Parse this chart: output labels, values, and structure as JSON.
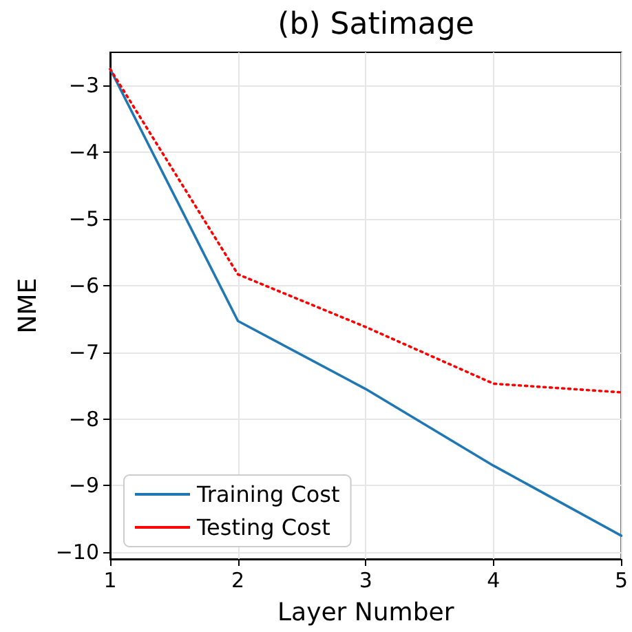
{
  "chart_data": {
    "type": "line",
    "title": "(b) Satimage",
    "xlabel": "Layer Number",
    "ylabel": "NME",
    "x": [
      1,
      2,
      3,
      4,
      5
    ],
    "series": [
      {
        "name": "Training Cost",
        "color": "#1f77b4",
        "line_style": "solid",
        "values": [
          -2.75,
          -6.53,
          -7.55,
          -8.7,
          -9.75
        ]
      },
      {
        "name": "Testing Cost",
        "color": "#ff0000",
        "line_style": "dotted",
        "values": [
          -2.75,
          -5.83,
          -6.62,
          -7.47,
          -7.6
        ]
      }
    ],
    "xlim": [
      1,
      5
    ],
    "xticks": [
      1,
      2,
      3,
      4,
      5
    ],
    "ylim": [
      -10.1,
      -2.5
    ],
    "yticks": [
      -10,
      -9,
      -8,
      -7,
      -6,
      -5,
      -4,
      -3
    ],
    "grid": true,
    "legend": "bottom left",
    "marker": "none"
  }
}
